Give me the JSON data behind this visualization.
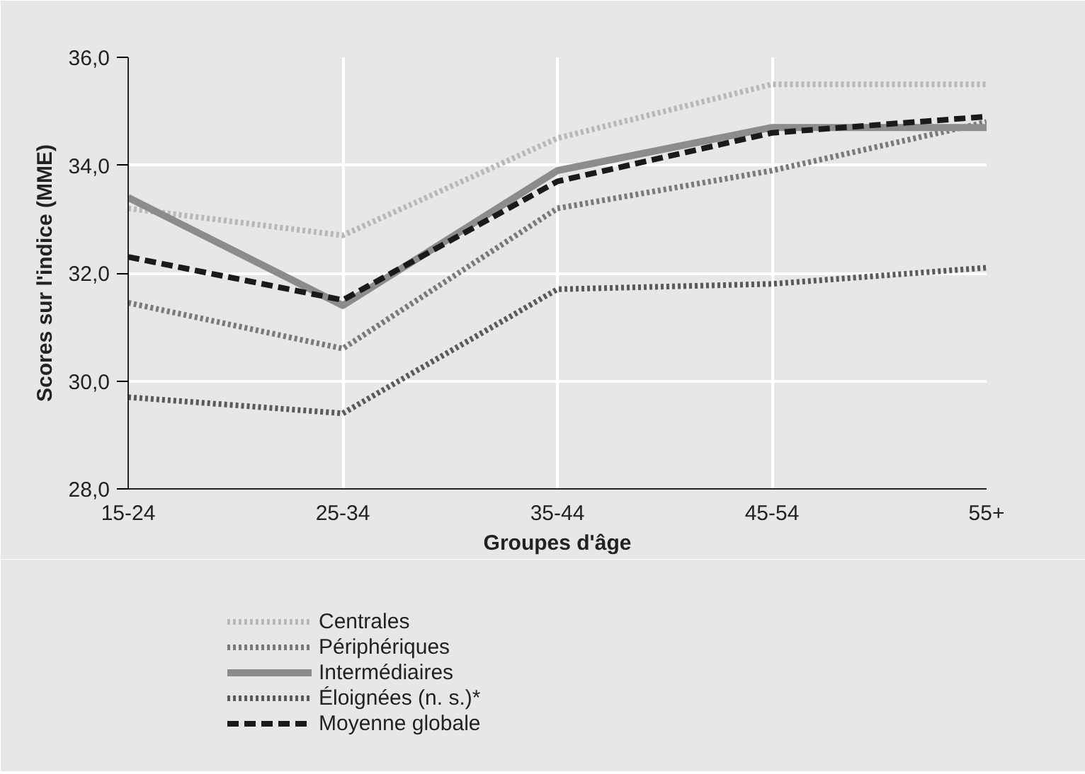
{
  "chart_data": {
    "type": "line",
    "categories": [
      "15-24",
      "25-34",
      "35-44",
      "45-54",
      "55+"
    ],
    "xlabel": "Groupes d'âge",
    "ylabel": "Scores sur l'indice (MME)",
    "ylim": [
      28,
      36
    ],
    "yticks": [
      {
        "value": 28,
        "label": "28,0"
      },
      {
        "value": 30,
        "label": "30,0"
      },
      {
        "value": 32,
        "label": "32,0"
      },
      {
        "value": 34,
        "label": "34,0"
      },
      {
        "value": 36,
        "label": "36,0"
      }
    ],
    "grid": true,
    "legend": "bottom",
    "series": [
      {
        "name": "Centrales",
        "color": "#b8b8b8",
        "line_style": "dotted",
        "values": [
          33.2,
          32.7,
          34.5,
          35.5,
          35.5
        ]
      },
      {
        "name": "Périphériques",
        "color": "#7a7a7a",
        "line_style": "dotted",
        "values": [
          31.45,
          30.6,
          33.2,
          33.9,
          34.8
        ]
      },
      {
        "name": "Intermédiaires",
        "color": "#8c8c8c",
        "line_style": "solid",
        "values": [
          33.4,
          31.4,
          33.9,
          34.7,
          34.7
        ]
      },
      {
        "name": "Éloignées (n. s.)*",
        "color": "#5a5a5a",
        "line_style": "dotted",
        "values": [
          29.7,
          29.4,
          31.7,
          31.8,
          32.1
        ]
      },
      {
        "name": "Moyenne globale",
        "color": "#1a1a1a",
        "line_style": "dashed",
        "values": [
          32.3,
          31.5,
          33.7,
          34.6,
          34.9
        ]
      }
    ]
  }
}
